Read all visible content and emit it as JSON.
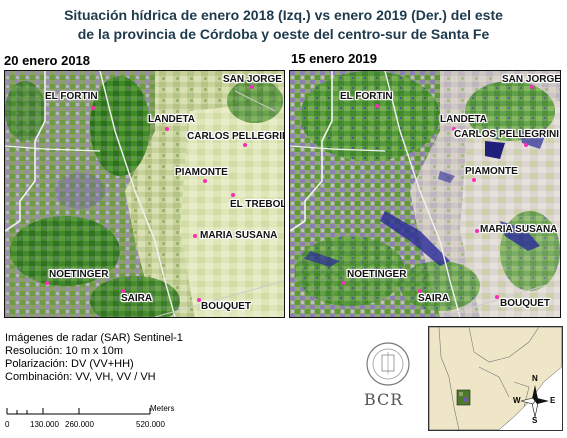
{
  "title": {
    "line1": "Situación hídrica de enero 2018 (Izq.) vs enero 2019 (Der.) del este",
    "line2": "de la provincia de Córdoba y oeste del centro-sur de Santa Fe"
  },
  "left_panel": {
    "label": "20 enero 2018",
    "cities": [
      "EL FORTIN",
      "SAN JORGE",
      "LANDETA",
      "CARLOS PELLEGRINI",
      "PIAMONTE",
      "EL TREBOL",
      "MARIA SUSANA",
      "NOETINGER",
      "SAIRA",
      "BOUQUET"
    ]
  },
  "right_panel": {
    "label": "15 enero 2019",
    "cities": [
      "EL FORTIN",
      "SAN JORGE",
      "LANDETA",
      "CARLOS PELLEGRINI",
      "PIAMONTE",
      "MARIA SUSANA",
      "NOETINGER",
      "SAIRA",
      "BOUQUET"
    ]
  },
  "legend": {
    "lines": [
      "Imágenes de radar (SAR) Sentinel-1",
      "Resolución: 10 m x 10m",
      "Polarización: DV (VV+HH)",
      "Combinación: VV, VH, VV / VH"
    ]
  },
  "scale_bar": {
    "unit": "Meters",
    "ticks": [
      "0",
      "130.000",
      "260.000",
      "520.000"
    ]
  },
  "logo": {
    "text": "BCR"
  },
  "north_arrow": {
    "n": "N",
    "s": "S",
    "e": "E",
    "w": "W"
  },
  "colors": {
    "green_vegetation": "#2f7a1e",
    "pale_field": "#d7e0a8",
    "water_blue": "#2a2a9a",
    "city_dot": "#ff2ab8",
    "title_color": "#1e3a4c"
  }
}
